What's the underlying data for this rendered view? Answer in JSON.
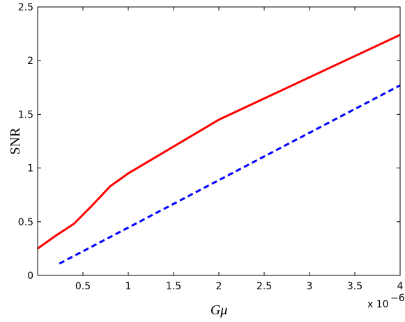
{
  "chart_data": {
    "type": "line",
    "x_label": "Gμ",
    "y_label": "SNR",
    "x_multiplier": "x 10",
    "x_multiplier_exponent": "−6",
    "xlim": [
      0,
      4
    ],
    "ylim": [
      0,
      2.5
    ],
    "xticks": [
      0.5,
      1,
      1.5,
      2,
      2.5,
      3,
      3.5,
      4
    ],
    "yticks": [
      0,
      0.5,
      1,
      1.5,
      2,
      2.5
    ],
    "series": [
      {
        "color": "#ff0000",
        "dash": "solid",
        "x": [
          0,
          0.2,
          0.4,
          0.6,
          0.8,
          1,
          2,
          4
        ],
        "values": [
          0.25,
          0.37,
          0.48,
          0.65,
          0.83,
          0.95,
          1.45,
          2.24
        ]
      },
      {
        "color": "#0000ff",
        "dash": "dashed",
        "x": [
          0.24,
          4
        ],
        "values": [
          0.11,
          1.77
        ]
      }
    ]
  }
}
